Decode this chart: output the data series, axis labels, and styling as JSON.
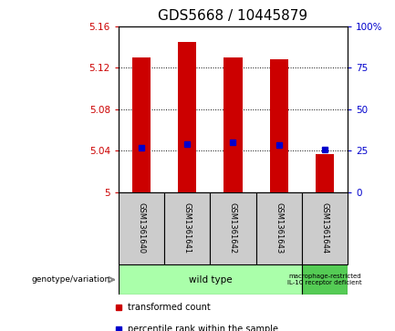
{
  "title": "GDS5668 / 10445879",
  "samples": [
    "GSM1361640",
    "GSM1361641",
    "GSM1361642",
    "GSM1361643",
    "GSM1361644"
  ],
  "bar_tops": [
    5.13,
    5.145,
    5.13,
    5.128,
    5.037
  ],
  "bar_bottom": 5.0,
  "percentile_values": [
    5.043,
    5.046,
    5.048,
    5.045,
    5.041
  ],
  "ylim_left": [
    5.0,
    5.16
  ],
  "yticks_left": [
    5.0,
    5.04,
    5.08,
    5.12,
    5.16
  ],
  "ytick_labels_left": [
    "5",
    "5.04",
    "5.08",
    "5.12",
    "5.16"
  ],
  "ylim_right": [
    0,
    100
  ],
  "yticks_right": [
    0,
    25,
    50,
    75,
    100
  ],
  "ytick_labels_right": [
    "0",
    "25",
    "50",
    "75",
    "100%"
  ],
  "bar_color": "#cc0000",
  "percentile_color": "#0000cc",
  "left_tick_color": "#cc0000",
  "right_tick_color": "#0000cc",
  "grid_yticks": [
    5.04,
    5.08,
    5.12
  ],
  "genotypes": [
    {
      "label": "wild type",
      "n_samples": 4,
      "color": "#aaffaa"
    },
    {
      "label": "macrophage-restricted\nIL-10 receptor deficient",
      "n_samples": 1,
      "color": "#55cc55"
    }
  ],
  "sample_bg_color": "#cccccc",
  "legend_items": [
    {
      "color": "#cc0000",
      "label": "transformed count"
    },
    {
      "color": "#0000cc",
      "label": "percentile rank within the sample"
    }
  ],
  "genotype_label": "genotype/variation",
  "title_fontsize": 11,
  "bar_width": 0.4
}
